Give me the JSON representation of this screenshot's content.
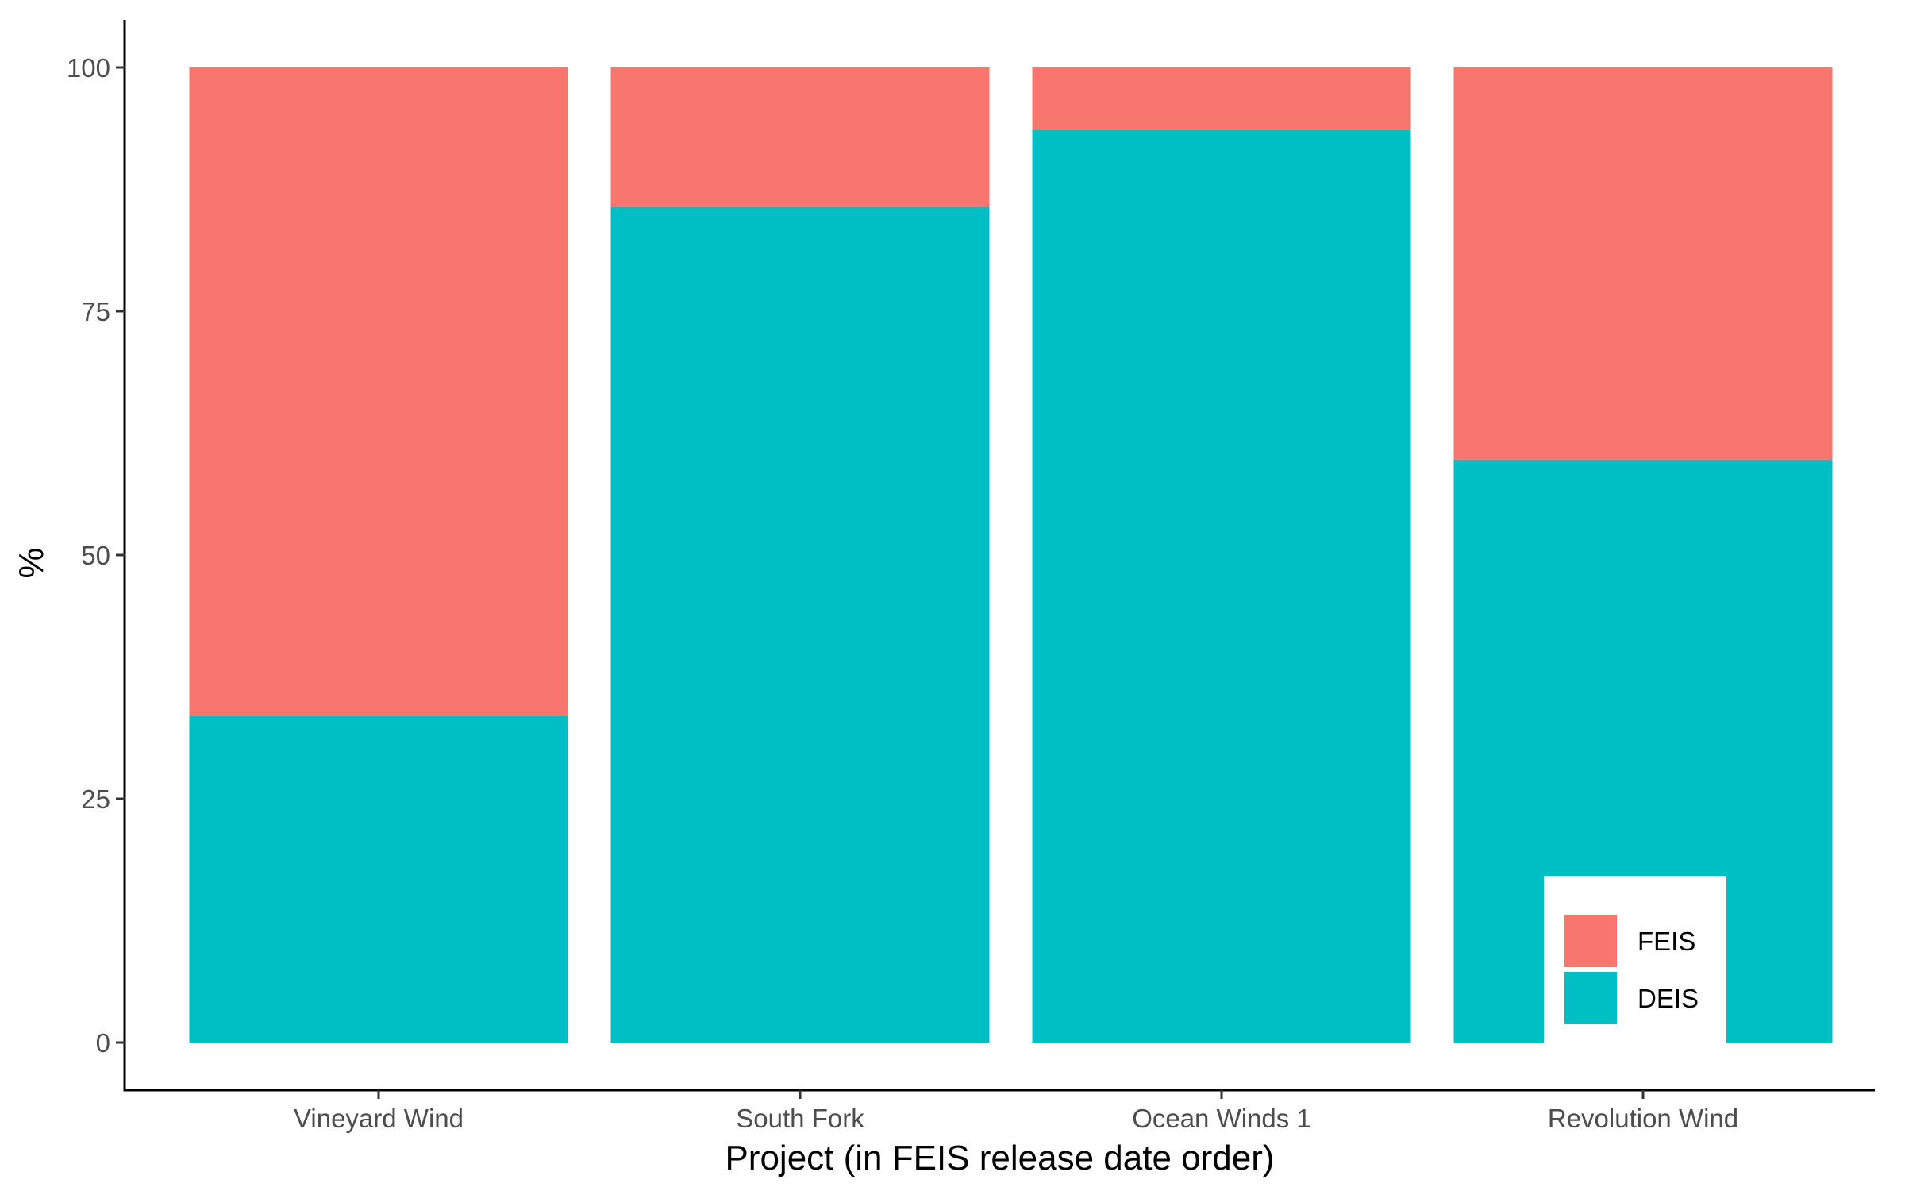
{
  "chart_data": {
    "type": "bar",
    "stacked": true,
    "categories": [
      "Vineyard Wind",
      "South Fork",
      "Ocean Winds 1",
      "Revolution Wind"
    ],
    "series": [
      {
        "name": "DEIS",
        "values": [
          33.5,
          85.7,
          93.6,
          59.8
        ],
        "color": "#00BFC4"
      },
      {
        "name": "FEIS",
        "values": [
          66.5,
          14.3,
          6.4,
          40.2
        ],
        "color": "#F8766D"
      }
    ],
    "title": "",
    "xlabel": "Project (in FEIS release date order)",
    "ylabel": "%",
    "ylim": [
      0,
      100
    ],
    "yticks": [
      0,
      25,
      50,
      75,
      100
    ],
    "grid": false,
    "legend": {
      "position": "bottom-right",
      "entries": [
        {
          "label": "FEIS",
          "color": "#F8766D"
        },
        {
          "label": "DEIS",
          "color": "#00BFC4"
        }
      ]
    }
  }
}
